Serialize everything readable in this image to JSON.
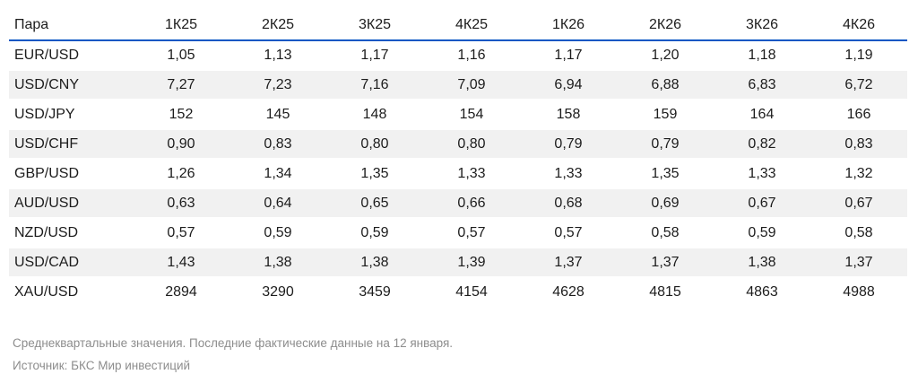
{
  "chart_data": {
    "type": "table",
    "columns": [
      "Пара",
      "1К25",
      "2К25",
      "3К25",
      "4К25",
      "1К26",
      "2К26",
      "3К26",
      "4К26"
    ],
    "rows": [
      {
        "pair": "EUR/USD",
        "values": [
          "1,05",
          "1,13",
          "1,17",
          "1,16",
          "1,17",
          "1,20",
          "1,18",
          "1,19"
        ]
      },
      {
        "pair": "USD/CNY",
        "values": [
          "7,27",
          "7,23",
          "7,16",
          "7,09",
          "6,94",
          "6,88",
          "6,83",
          "6,72"
        ]
      },
      {
        "pair": "USD/JPY",
        "values": [
          "152",
          "145",
          "148",
          "154",
          "158",
          "159",
          "164",
          "166"
        ]
      },
      {
        "pair": "USD/CHF",
        "values": [
          "0,90",
          "0,83",
          "0,80",
          "0,80",
          "0,79",
          "0,79",
          "0,82",
          "0,83"
        ]
      },
      {
        "pair": "GBP/USD",
        "values": [
          "1,26",
          "1,34",
          "1,35",
          "1,33",
          "1,33",
          "1,35",
          "1,33",
          "1,32"
        ]
      },
      {
        "pair": "AUD/USD",
        "values": [
          "0,63",
          "0,64",
          "0,65",
          "0,66",
          "0,68",
          "0,69",
          "0,67",
          "0,67"
        ]
      },
      {
        "pair": "NZD/USD",
        "values": [
          "0,57",
          "0,59",
          "0,59",
          "0,57",
          "0,57",
          "0,58",
          "0,59",
          "0,58"
        ]
      },
      {
        "pair": "USD/CAD",
        "values": [
          "1,43",
          "1,38",
          "1,38",
          "1,39",
          "1,37",
          "1,37",
          "1,38",
          "1,37"
        ]
      },
      {
        "pair": "XAU/USD",
        "values": [
          "2894",
          "3290",
          "3459",
          "4154",
          "4628",
          "4815",
          "4863",
          "4988"
        ]
      }
    ],
    "title": "",
    "layout_hints": {
      "striped_rows": "even",
      "header_rule": "accent-blue",
      "value_alignment": "center"
    }
  },
  "footnote": "Среднеквартальные значения. Последние фактические данные на 12 января.",
  "source": "Источник: БКС Мир инвестиций",
  "colors": {
    "accent_blue": "#0b57c4",
    "row_stripe": "#f1f1f1",
    "muted_text": "#8d8d8d",
    "body_text": "#1c1c1c"
  }
}
